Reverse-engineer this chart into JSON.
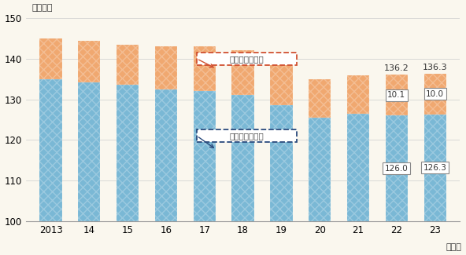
{
  "years": [
    "2013",
    "14",
    "15",
    "16",
    "17",
    "18",
    "19",
    "20",
    "21",
    "22",
    "23"
  ],
  "blue_values": [
    135.0,
    134.2,
    133.5,
    132.5,
    132.0,
    131.0,
    128.5,
    125.5,
    126.5,
    126.0,
    126.3
  ],
  "orange_values": [
    10.0,
    10.3,
    10.0,
    10.5,
    11.0,
    11.0,
    10.5,
    9.5,
    9.5,
    10.1,
    10.0
  ],
  "blue_color": "#7ab8d5",
  "orange_color": "#f0a870",
  "bg_color": "#faf7ee",
  "ylim_min": 100,
  "ylim_max": 150,
  "ylabel": "（時間）",
  "xlabel": "（年）",
  "label_22_blue": "126.0",
  "label_22_orange": "10.1",
  "label_22_total": "136.2",
  "label_23_blue": "126.3",
  "label_23_orange": "10.0",
  "label_23_total": "136.3",
  "annotation_orange": "所定外労働時間",
  "annotation_blue": "所定内労働時間",
  "ann_orange_color": "#d05030",
  "ann_blue_color": "#2a4a7c",
  "yticks": [
    100,
    110,
    120,
    130,
    140,
    150
  ]
}
